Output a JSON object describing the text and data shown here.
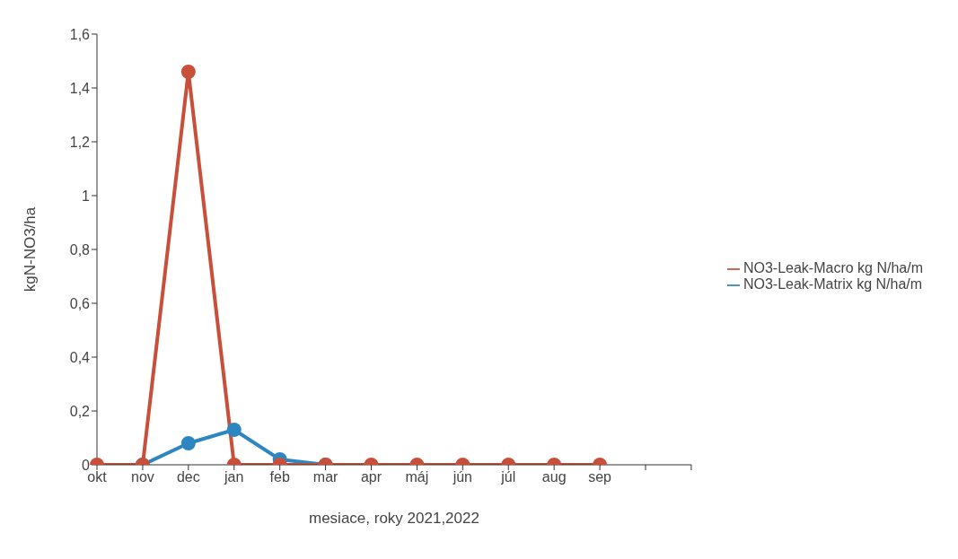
{
  "chart_data": {
    "type": "line",
    "xlabel": "mesiace, roky 2021,2022",
    "ylabel": "kgN-NO3/ha",
    "categories": [
      "okt",
      "nov",
      "dec",
      "jan",
      "feb",
      "mar",
      "apr",
      "máj",
      "jún",
      "júl",
      "aug",
      "sep",
      null,
      null
    ],
    "series": [
      {
        "name": "NO3-Leak-Matrix kg N/ha/m",
        "color": "#2e86c1",
        "values": [
          null,
          0,
          0.08,
          0.13,
          0.02,
          0,
          null,
          null,
          null,
          null,
          null,
          null,
          null,
          null
        ]
      },
      {
        "name": "NO3-Leak-Macro kg N/ha/m",
        "color": "#c8503a",
        "values": [
          0,
          0,
          1.46,
          0,
          0,
          0,
          0,
          0,
          0,
          0,
          0,
          0,
          null,
          null
        ]
      }
    ],
    "ylim": [
      0,
      1.6
    ],
    "yticks": [
      0,
      {
        "value": 0.2,
        "label": "0,2"
      },
      {
        "value": 0.4,
        "label": "0,4"
      },
      {
        "value": 0.6,
        "label": "0,6"
      },
      {
        "value": 0.8,
        "label": "0,8"
      },
      1,
      {
        "value": 1.2,
        "label": "1,2"
      },
      {
        "value": 1.4,
        "label": "1,4"
      },
      {
        "value": 1.6,
        "label": "1,6"
      }
    ],
    "grid": false,
    "legend": "right",
    "marker": "circle",
    "line_style": "solid"
  }
}
